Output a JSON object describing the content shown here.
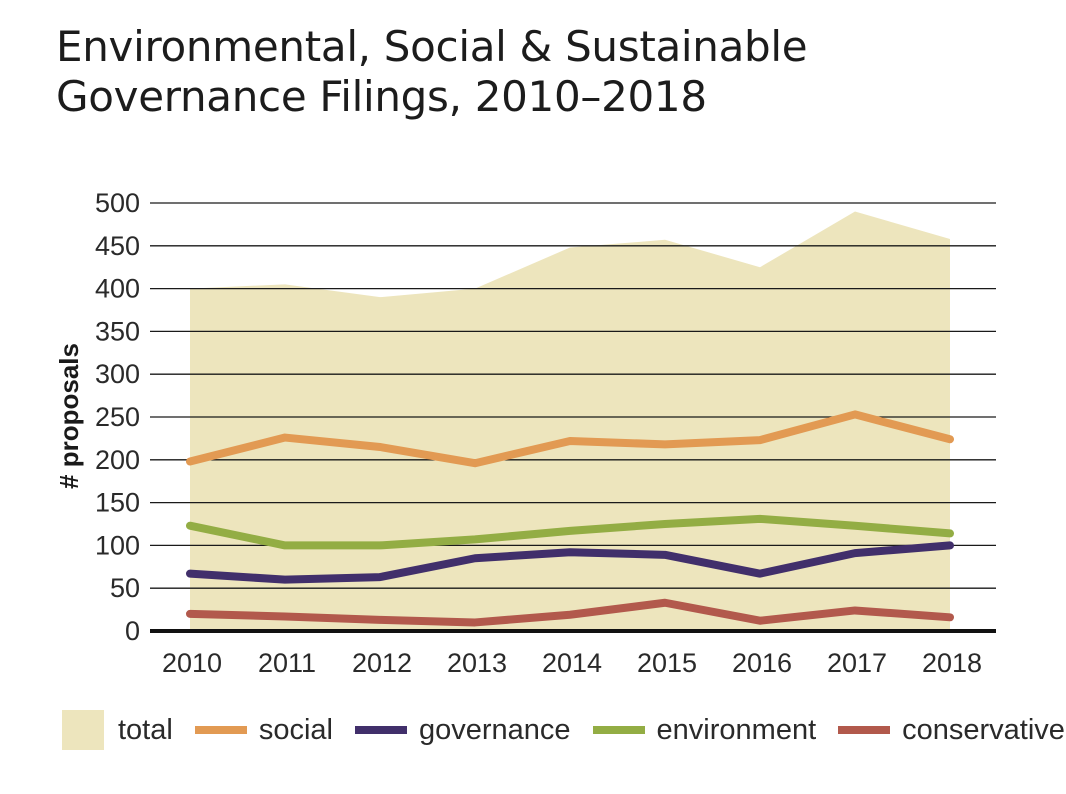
{
  "title_line1": "Environmental, Social & Sustainable",
  "title_line2": "Governance Filings, 2010–2018",
  "chart_data": {
    "type": "line",
    "ylabel": "# proposals",
    "xlabel": "",
    "ylim": [
      0,
      500
    ],
    "yticks": [
      0,
      50,
      100,
      150,
      200,
      250,
      300,
      350,
      400,
      450,
      500
    ],
    "grid": true,
    "legend_position": "bottom",
    "x": [
      "2010",
      "2011",
      "2012",
      "2013",
      "2014",
      "2015",
      "2016",
      "2017",
      "2018"
    ],
    "series": [
      {
        "name": "total",
        "kind": "area",
        "color": "#ede5bd",
        "values": [
          400,
          405,
          390,
          400,
          448,
          457,
          425,
          490,
          458
        ]
      },
      {
        "name": "social",
        "kind": "line",
        "color": "#e29a53",
        "values": [
          198,
          226,
          215,
          196,
          222,
          218,
          223,
          253,
          224
        ]
      },
      {
        "name": "governance",
        "kind": "line",
        "color": "#412f6b",
        "values": [
          67,
          60,
          63,
          85,
          92,
          89,
          67,
          91,
          100
        ]
      },
      {
        "name": "environment",
        "kind": "line",
        "color": "#93ad44",
        "values": [
          123,
          100,
          100,
          107,
          117,
          125,
          131,
          123,
          114
        ]
      },
      {
        "name": "conservative",
        "kind": "line",
        "color": "#b2594c",
        "values": [
          20,
          17,
          13,
          10,
          19,
          33,
          12,
          24,
          16
        ]
      }
    ]
  }
}
